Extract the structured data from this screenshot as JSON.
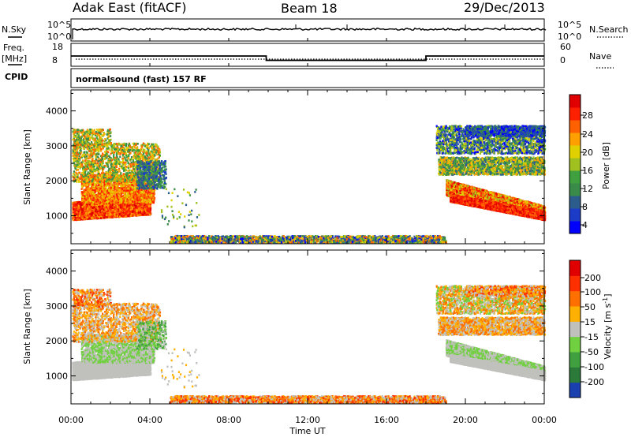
{
  "header": {
    "station": "Adak East (fitACF)",
    "beam": "Beam 18",
    "date": "29/Dec/2013"
  },
  "noise_panel": {
    "left_label": "N.Sky",
    "left_ticks": [
      "10^5",
      "10^0"
    ],
    "right_label": "N.Search",
    "right_ticks": [
      "10^5",
      "10^0"
    ]
  },
  "freq_panel": {
    "left_label_1": "Freq.",
    "left_label_2": "[MHz]",
    "left_ticks": [
      "18",
      "8"
    ],
    "right_label": "Nave",
    "right_ticks": [
      "60",
      "0"
    ]
  },
  "cpid_panel": {
    "left_label": "CPID",
    "text": "normalsound (fast) 157 RF"
  },
  "power_colorbar": {
    "label": "Power [dB]",
    "ticks": [
      "28",
      "24",
      "20",
      "16",
      "12",
      "8",
      "4"
    ],
    "colors": [
      "#0000ff",
      "#1c3cc8",
      "#2b5c8c",
      "#3a8a4a",
      "#40a040",
      "#a0c020",
      "#e0d000",
      "#ffa000",
      "#ff6000",
      "#ff2000",
      "#e00000"
    ]
  },
  "velocity_colorbar": {
    "label": "Velocity [m s",
    "label_sup": "-1",
    "label_end": "]",
    "ticks": [
      "200",
      "100",
      "50",
      "15",
      "-15",
      "-50",
      "-100",
      "-200"
    ],
    "colors": [
      "#1a40b0",
      "#2b7a3a",
      "#40a040",
      "#70d040",
      "#c0c0bc",
      "#ffb000",
      "#ff7000",
      "#ff3000",
      "#e00000"
    ]
  },
  "chart_data": [
    {
      "type": "line",
      "title": "",
      "xlabel": "Time UT",
      "ylabel": "Freq. [MHz]",
      "x_ticks": [
        "00:00",
        "04:00",
        "08:00",
        "12:00",
        "16:00",
        "20:00",
        "00:00"
      ],
      "xlim_hours": [
        0,
        24
      ],
      "ylim": [
        8,
        18
      ],
      "series": [
        {
          "x": [
            0,
            9.9,
            9.9,
            18.0,
            18.0,
            24
          ],
          "y": [
            12.5,
            12.5,
            10.6,
            10.6,
            12.5,
            12.5
          ]
        }
      ]
    },
    {
      "type": "heatmap",
      "ylabel": "Slant Range [km]",
      "xlabel": "Time UT",
      "x_ticks": [
        "00:00",
        "04:00",
        "08:00",
        "12:00",
        "16:00",
        "20:00",
        "00:00"
      ],
      "y_ticks": [
        "1000",
        "2000",
        "3000",
        "4000"
      ],
      "xlim_hours": [
        0,
        24
      ],
      "ylim_km": [
        200,
        4600
      ],
      "z_label": "Power [dB]",
      "zlim": [
        0,
        30
      ]
    },
    {
      "type": "heatmap",
      "ylabel": "Slant Range [km]",
      "xlabel": "Time UT",
      "x_ticks": [
        "00:00",
        "04:00",
        "08:00",
        "12:00",
        "16:00",
        "20:00",
        "00:00"
      ],
      "y_ticks": [
        "1000",
        "2000",
        "3000",
        "4000"
      ],
      "xlim_hours": [
        0,
        24
      ],
      "ylim_km": [
        200,
        4600
      ],
      "z_label": "Velocity [m s-1]",
      "zlim": [
        -200,
        200
      ]
    }
  ]
}
